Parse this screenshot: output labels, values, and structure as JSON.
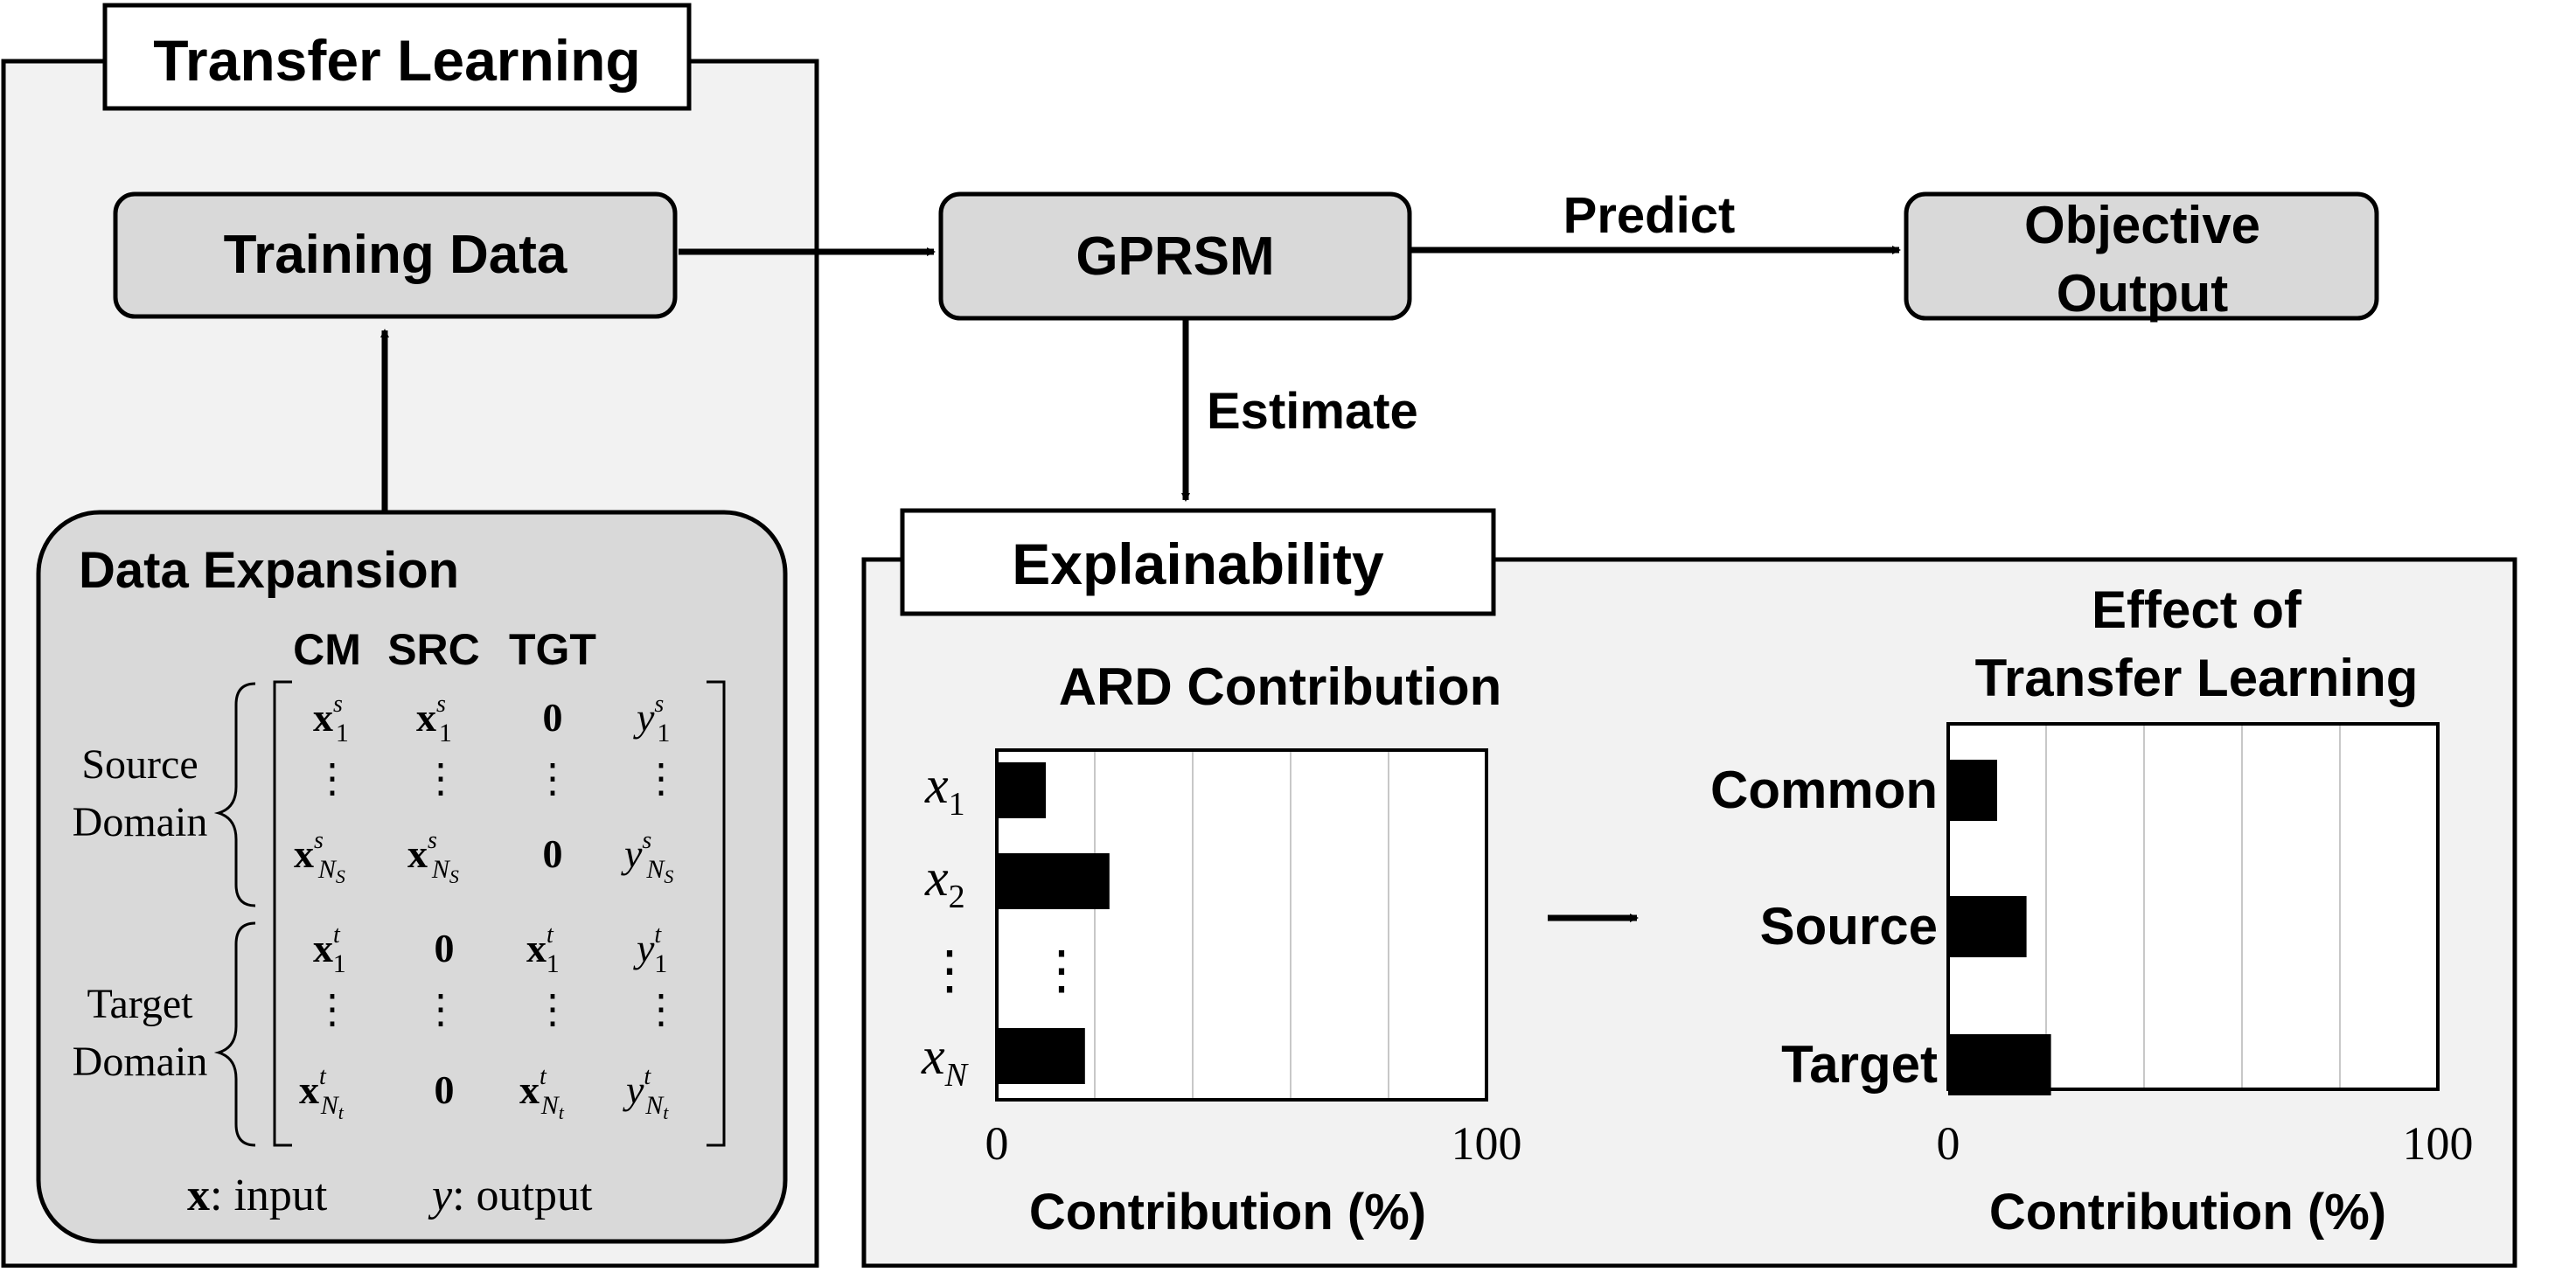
{
  "transfer_learning": {
    "title": "Transfer Learning",
    "training_data": "Training Data",
    "data_expansion": {
      "title": "Data Expansion",
      "col_headers": [
        "CM",
        "SRC",
        "TGT"
      ],
      "source_label_line1": "Source",
      "source_label_line2": "Domain",
      "target_label_line1": "Target",
      "target_label_line2": "Domain",
      "matrix": {
        "src_row1": {
          "cm": "x",
          "cm_sup": "s",
          "cm_sub": "1",
          "src": "x",
          "src_sup": "s",
          "src_sub": "1",
          "tgt": "0",
          "y": "y",
          "y_sup": "s",
          "y_sub": "1"
        },
        "src_rowN": {
          "cm": "x",
          "cm_sup": "s",
          "cm_sub": "N",
          "cm_subsub": "S",
          "src": "x",
          "src_sup": "s",
          "src_sub": "N",
          "src_subsub": "S",
          "tgt": "0",
          "y": "y",
          "y_sup": "s",
          "y_sub": "N",
          "y_subsub": "S"
        },
        "tgt_row1": {
          "cm": "x",
          "cm_sup": "t",
          "cm_sub": "1",
          "src": "0",
          "tgt": "x",
          "tgt_sup": "t",
          "tgt_sub": "1",
          "y": "y",
          "y_sup": "t",
          "y_sub": "1"
        },
        "tgt_rowN": {
          "cm": "x",
          "cm_sup": "t",
          "cm_sub": "N",
          "cm_subsub": "t",
          "src": "0",
          "tgt": "x",
          "tgt_sup": "t",
          "tgt_sub": "N",
          "tgt_subsub": "t",
          "y": "y",
          "y_sup": "t",
          "y_sub": "N",
          "y_subsub": "t"
        },
        "vdots": "⋮"
      },
      "legend_x": "x",
      "legend_x_text": ": input",
      "legend_y": "y",
      "legend_y_text": ": output"
    }
  },
  "gprsm": "GPRSM",
  "predict_label": "Predict",
  "objective_output_line1": "Objective",
  "objective_output_line2": "Output",
  "estimate_label": "Estimate",
  "explainability": {
    "title": "Explainability",
    "ard": {
      "title": "ARD Contribution",
      "xlabel": "Contribution (%)",
      "tick_min": "0",
      "tick_max": "100",
      "vdots": "⋮",
      "labels": [
        {
          "base": "x",
          "sub": "1"
        },
        {
          "base": "x",
          "sub": "2"
        },
        {
          "base": "x",
          "sub": "N"
        }
      ]
    },
    "effect": {
      "title_line1": "Effect of",
      "title_line2": "Transfer Learning",
      "xlabel": "Contribution (%)",
      "tick_min": "0",
      "tick_max": "100"
    }
  },
  "chart_data": [
    {
      "type": "bar",
      "orientation": "horizontal",
      "title": "ARD Contribution",
      "categories": [
        "x1",
        "x2",
        "xN"
      ],
      "values": [
        10,
        23,
        18
      ],
      "xlabel": "Contribution (%)",
      "xlim": [
        0,
        100
      ],
      "grid": true
    },
    {
      "type": "bar",
      "orientation": "horizontal",
      "title": "Effect of Transfer Learning",
      "categories": [
        "Common",
        "Source",
        "Target"
      ],
      "values": [
        10,
        16,
        21
      ],
      "xlabel": "Contribution (%)",
      "xlim": [
        0,
        100
      ],
      "grid": true
    }
  ]
}
